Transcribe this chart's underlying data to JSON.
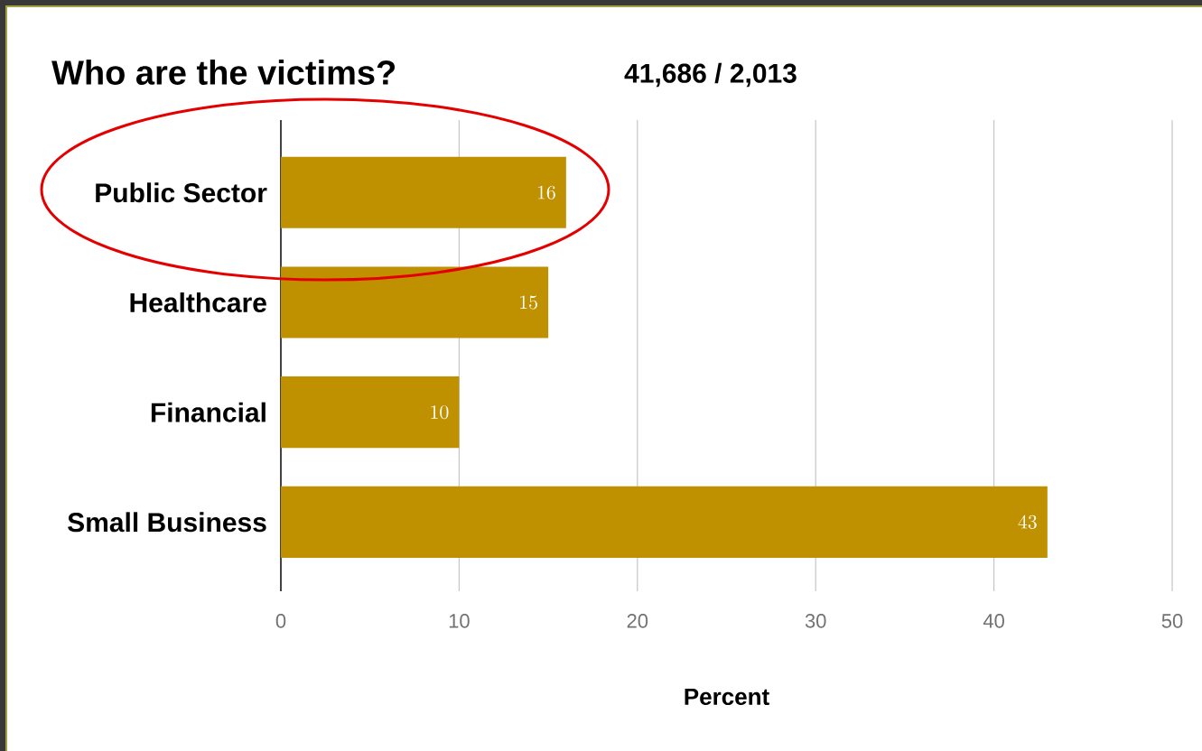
{
  "chart_data": {
    "type": "bar",
    "orientation": "horizontal",
    "title": "Who are the victims?",
    "subtitle": "41,686 / 2,013",
    "xlabel": "Percent",
    "categories": [
      "Public Sector",
      "Healthcare",
      "Financial",
      "Small Business"
    ],
    "values": [
      16,
      15,
      10,
      43
    ],
    "color": "#bf9000",
    "xlim": [
      0,
      50
    ],
    "xticks": [
      0,
      10,
      20,
      30,
      40,
      50
    ],
    "grid": "x",
    "data_labels": true
  }
}
